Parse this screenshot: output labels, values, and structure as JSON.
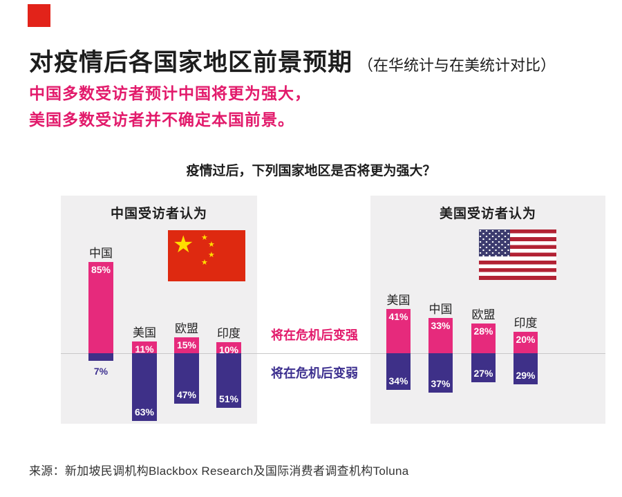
{
  "header": {
    "title": "对疫情后各国家地区前景预期",
    "title_suffix": "（在华统计与在美统计对比）",
    "subtitle_line1": "中国多数受访者预计中国将更为强大，",
    "subtitle_line2": "美国多数受访者并不确定本国前景。"
  },
  "question": "疫情过后，下列国家地区是否将更为强大？",
  "legend": {
    "stronger": "将在危机后变强",
    "weaker": "将在危机后变弱"
  },
  "source": "来源：新加坡民调机构Blackbox Research及国际消费者调查机构Toluna",
  "colors": {
    "pink_bar": "#e62a7c",
    "pink_text": "#e21a6b",
    "purple_bar": "#3e3088",
    "purple_text": "#3c2f8f",
    "panel_bg": "#f0eff0",
    "baseline": "#c8c8c8",
    "logo_red": "#e2231a",
    "china_flag_red": "#de2910",
    "china_flag_yellow": "#ffde00",
    "us_flag_red": "#b22234",
    "us_flag_blue": "#3c3b6e"
  },
  "icons": {
    "china_flag": "china-flag",
    "usa_flag": "usa-flag",
    "logo": "red-square-logo"
  },
  "chart_data": [
    {
      "type": "bar",
      "title": "中国受访者认为",
      "flag": "china-flag",
      "categories": [
        "中国",
        "美国",
        "欧盟",
        "印度"
      ],
      "series": [
        {
          "name": "将在危机后变强",
          "values": [
            85,
            11,
            15,
            10
          ]
        },
        {
          "name": "将在危机后变弱",
          "values": [
            7,
            63,
            47,
            51
          ]
        }
      ],
      "value_suffix": "%",
      "layout": "diverging stacked bars around shared baseline, legend between panels"
    },
    {
      "type": "bar",
      "title": "美国受访者认为",
      "flag": "usa-flag",
      "categories": [
        "美国",
        "中国",
        "欧盟",
        "印度"
      ],
      "series": [
        {
          "name": "将在危机后变强",
          "values": [
            41,
            33,
            28,
            20
          ]
        },
        {
          "name": "将在危机后变弱",
          "values": [
            34,
            37,
            27,
            29
          ]
        }
      ],
      "value_suffix": "%",
      "layout": "diverging stacked bars around shared baseline, legend between panels"
    }
  ]
}
